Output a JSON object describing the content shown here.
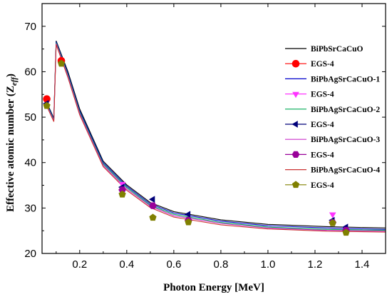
{
  "chart_data": {
    "type": "line",
    "title": "",
    "xlabel": "Photon Energy [MeV]",
    "ylabel_main": "Effective atomic number (Z",
    "ylabel_sub": "eff",
    "ylabel_close": ")",
    "xlim": [
      0.04,
      1.5
    ],
    "ylim": [
      20,
      75
    ],
    "xticks": [
      0.2,
      0.4,
      0.6,
      0.8,
      1.0,
      1.2,
      1.4
    ],
    "xtick_labels": [
      "0.2",
      "0.4",
      "0.6",
      "0.8",
      "1.0",
      "1.2",
      "1.4"
    ],
    "yticks": [
      20,
      30,
      40,
      50,
      60,
      70
    ],
    "ytick_labels": [
      "20",
      "30",
      "40",
      "50",
      "60",
      "70"
    ],
    "grid": false,
    "legend_position": "right",
    "series": [
      {
        "name": "BiPbSrCaCuO",
        "kind": "line",
        "color": "#000000",
        "x": [
          0.06,
          0.09,
          0.1,
          0.15,
          0.2,
          0.3,
          0.4,
          0.5,
          0.6,
          0.8,
          1.0,
          1.25,
          1.5
        ],
        "y": [
          53.2,
          49.8,
          66.8,
          60.0,
          51.8,
          40.3,
          35.1,
          31.2,
          29.2,
          27.4,
          26.4,
          25.9,
          25.6
        ]
      },
      {
        "name": "EGS-4",
        "kind": "marker",
        "marker": "circle",
        "color": "#ff0000",
        "x": [
          0.06,
          0.122
        ],
        "y": [
          54.0,
          62.4
        ]
      },
      {
        "name": "BiPbAgSrCaCuO-1",
        "kind": "line",
        "color": "#0000cc",
        "x": [
          0.06,
          0.09,
          0.1,
          0.15,
          0.2,
          0.3,
          0.4,
          0.5,
          0.6,
          0.8,
          1.0,
          1.25,
          1.5
        ],
        "y": [
          53.0,
          49.6,
          66.6,
          59.6,
          51.4,
          40.0,
          34.8,
          30.9,
          28.9,
          27.1,
          26.1,
          25.6,
          25.3
        ]
      },
      {
        "name": "EGS-4",
        "kind": "marker",
        "marker": "triangle-down",
        "color": "#ff33ff",
        "x": [
          0.381,
          1.275
        ],
        "y": [
          35.3,
          28.6
        ]
      },
      {
        "name": "BiPbAgSrCaCuO-2",
        "kind": "line",
        "color": "#00aa55",
        "x": [
          0.06,
          0.09,
          0.1,
          0.15,
          0.2,
          0.3,
          0.4,
          0.5,
          0.6,
          0.8,
          1.0,
          1.25,
          1.5
        ],
        "y": [
          52.8,
          49.4,
          66.4,
          59.3,
          51.1,
          39.7,
          34.5,
          30.6,
          28.6,
          26.8,
          25.8,
          25.3,
          25.1
        ]
      },
      {
        "name": "EGS-4",
        "kind": "marker",
        "marker": "triangle-left",
        "color": "#00007a",
        "x": [
          0.06,
          0.381,
          0.511,
          0.662,
          1.275,
          1.332
        ],
        "y": [
          53.0,
          34.6,
          31.9,
          28.6,
          27.3,
          25.8
        ]
      },
      {
        "name": "BiPbAgSrCaCuO-3",
        "kind": "line",
        "color": "#cc33cc",
        "x": [
          0.06,
          0.09,
          0.1,
          0.15,
          0.2,
          0.3,
          0.4,
          0.5,
          0.6,
          0.8,
          1.0,
          1.25,
          1.5
        ],
        "y": [
          52.6,
          49.2,
          66.2,
          59.0,
          50.8,
          39.4,
          34.2,
          30.4,
          28.3,
          26.6,
          25.6,
          25.1,
          24.9
        ]
      },
      {
        "name": "EGS-4",
        "kind": "marker",
        "marker": "hexagon",
        "color": "#990099",
        "x": [
          0.381,
          0.511,
          0.662,
          1.275,
          1.332
        ],
        "y": [
          34.0,
          30.5,
          27.3,
          26.8,
          25.1
        ]
      },
      {
        "name": "BiPbAgSrCaCuO-4",
        "kind": "line",
        "color": "#cc3333",
        "x": [
          0.06,
          0.09,
          0.1,
          0.15,
          0.2,
          0.3,
          0.4,
          0.5,
          0.6,
          0.8,
          1.0,
          1.25,
          1.5
        ],
        "y": [
          52.4,
          49.0,
          66.0,
          58.7,
          50.5,
          39.1,
          33.9,
          30.1,
          28.0,
          26.3,
          25.4,
          24.9,
          24.7
        ]
      },
      {
        "name": "EGS-4",
        "kind": "marker",
        "marker": "pentagon",
        "color": "#808000",
        "x": [
          0.06,
          0.122,
          0.381,
          0.511,
          0.662,
          1.275,
          1.332
        ],
        "y": [
          52.5,
          61.8,
          33.0,
          27.9,
          26.9,
          26.7,
          24.6
        ]
      }
    ]
  }
}
